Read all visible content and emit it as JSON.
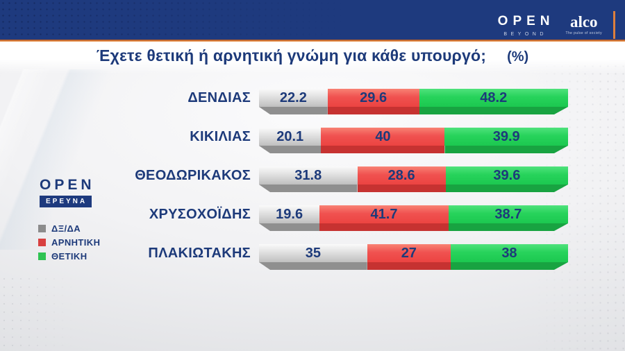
{
  "header": {
    "open_logo": {
      "word": "OPEN",
      "sub": "BEYOND"
    },
    "alco_logo": {
      "word": "alco",
      "tagline": "The pulse of society"
    }
  },
  "title": {
    "text": "Έχετε θετική ή αρνητική γνώμη για κάθε υπουργό;",
    "unit": "(%)"
  },
  "side_branding": {
    "open_word": "OPEN",
    "box_word": "ΕΡΕΥΝΑ"
  },
  "legend": [
    {
      "key": "dxda",
      "label": "ΔΞ/ΔΑ",
      "color": "#8c8c8c"
    },
    {
      "key": "negative",
      "label": "ΑΡΝΗΤΙΚΗ",
      "color": "#d84040"
    },
    {
      "key": "positive",
      "label": "ΘΕΤΙΚΗ",
      "color": "#2fc352"
    }
  ],
  "chart_data": {
    "type": "bar",
    "orientation": "horizontal-stacked",
    "title": "Έχετε θετική ή αρνητική γνώμη για κάθε υπουργό; (%)",
    "xlim": [
      0,
      100
    ],
    "value_labels_shown": true,
    "legend_position": "left-bottom",
    "categories": [
      "ΔΕΝΔΙΑΣ",
      "ΚΙΚΙΛΙΑΣ",
      "ΘΕΟΔΩΡΙΚΑΚΟΣ",
      "ΧΡΥΣΟΧΟΪΔΗΣ",
      "ΠΛΑΚΙΩΤΑΚΗΣ"
    ],
    "series": [
      {
        "key": "dxda",
        "name": "ΔΞ/ΔΑ",
        "color": "#bfbfbf",
        "band_color": "#8f8f8f",
        "values": [
          22.2,
          20.1,
          31.8,
          19.6,
          35
        ]
      },
      {
        "key": "negative",
        "name": "ΑΡΝΗΤΙΚΗ",
        "color": "#f05250",
        "band_color": "#c63231",
        "values": [
          29.6,
          40,
          28.6,
          41.7,
          27
        ]
      },
      {
        "key": "positive",
        "name": "ΘΕΤΙΚΗ",
        "color": "#27d35b",
        "band_color": "#18a341",
        "values": [
          48.2,
          39.9,
          39.6,
          38.7,
          38
        ]
      }
    ]
  },
  "colors": {
    "header_navy": "#1e3a7e",
    "accent_orange": "#d97b3a",
    "text_navy": "#1d3a7a"
  }
}
